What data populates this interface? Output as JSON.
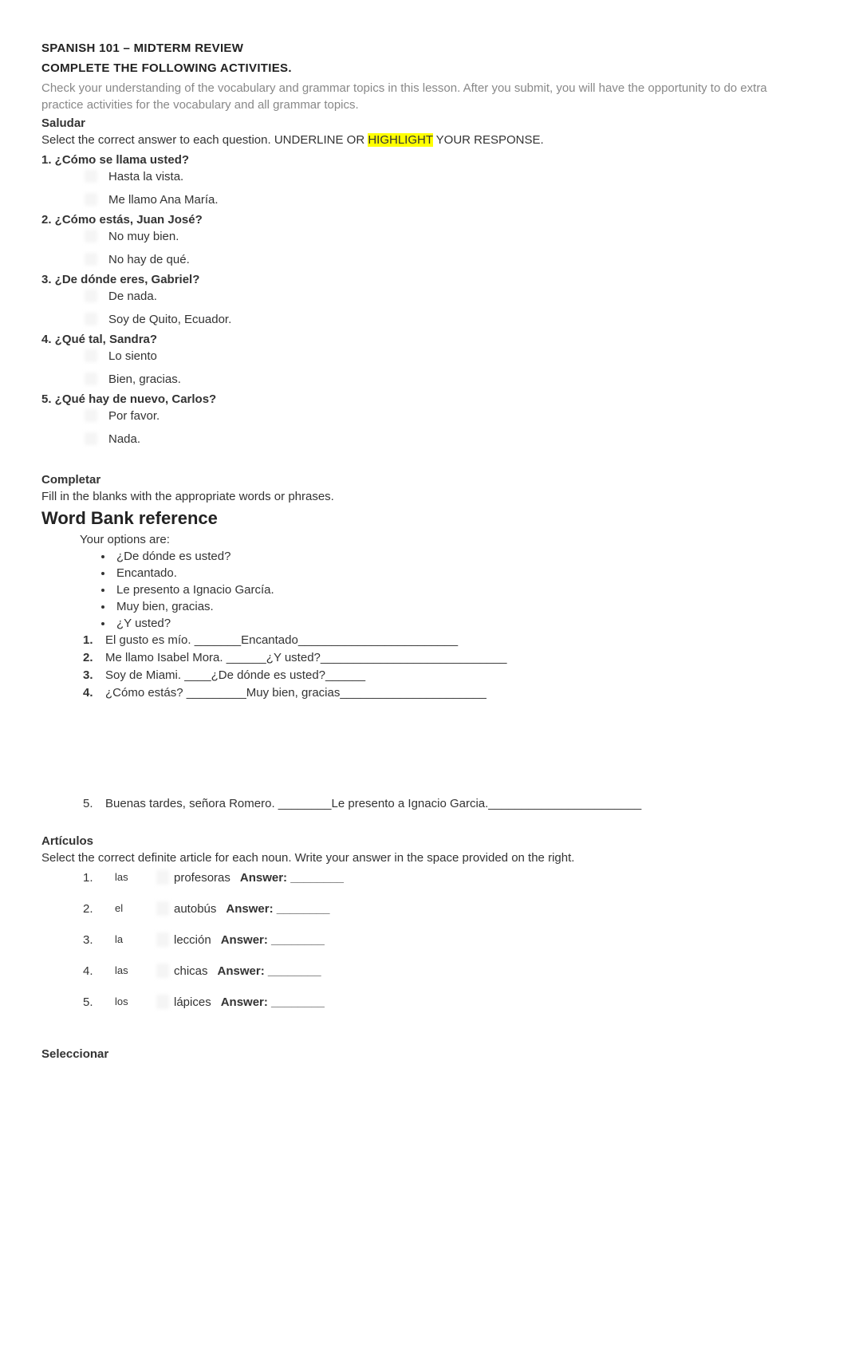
{
  "header": {
    "title": "SPANISH 101 – MIDTERM REVIEW",
    "subtitle": "COMPLETE THE FOLLOWING ACTIVITIES.",
    "intro": "Check your understanding of the vocabulary and grammar topics in this lesson. After you submit, you will have the opportunity to do extra practice activities for the vocabulary and all grammar topics."
  },
  "saludar": {
    "title": "Saludar",
    "instruction_before": "Select the correct answer to each question. UNDERLINE OR ",
    "instruction_highlight": "HIGHLIGHT",
    "instruction_after": " YOUR RESPONSE.",
    "questions": [
      {
        "prompt": "1. ¿Cómo se llama usted?",
        "options": [
          "Hasta la vista.",
          "Me llamo Ana María."
        ]
      },
      {
        "prompt": "2. ¿Cómo estás, Juan José?",
        "options": [
          "No muy bien.",
          "No hay de qué."
        ]
      },
      {
        "prompt": "3. ¿De dónde eres, Gabriel?",
        "options": [
          "De nada.",
          "Soy de Quito, Ecuador."
        ]
      },
      {
        "prompt": "4. ¿Qué tal, Sandra?",
        "options": [
          "Lo siento",
          "Bien, gracias."
        ]
      },
      {
        "prompt": "5. ¿Qué hay de nuevo, Carlos?",
        "options": [
          "Por favor.",
          "Nada."
        ]
      }
    ]
  },
  "completar": {
    "title": "Completar",
    "instruction": "Fill in the blanks with the appropriate words or phrases.",
    "wordbank_heading": "Word Bank reference",
    "options_label": "Your options are:",
    "options": [
      "¿De dónde es usted?",
      "Encantado.",
      "Le presento a Ignacio García.",
      "Muy bien, gracias.",
      "¿Y usted?"
    ],
    "items": [
      {
        "num": "1.",
        "text": "El gusto es mío.   _______Encantado________________________"
      },
      {
        "num": "2.",
        "text": "Me llamo Isabel Mora. ______¿Y usted?____________________________"
      },
      {
        "num": "3.",
        "text": "Soy de Miami. ____¿De dónde es usted?______"
      },
      {
        "num": "4.",
        "text": "¿Cómo estás? _________Muy bien, gracias______________________"
      }
    ],
    "item5": {
      "num": "5.",
      "text": "Buenas tardes, señora Romero. ________Le presento a Ignacio Garcia._______________________"
    }
  },
  "articulos": {
    "title": "Artículos",
    "instruction": "Select the correct definite article for each noun. Write your answer in the space provided on the right.",
    "items": [
      {
        "num": "1.",
        "blur": "las",
        "noun": "profesoras",
        "answer_label": "Answer: ________"
      },
      {
        "num": "2.",
        "blur": "el",
        "noun": "autobús",
        "answer_label": "Answer: ________"
      },
      {
        "num": "3.",
        "blur": "la",
        "noun": "lección",
        "answer_label": "Answer: ________"
      },
      {
        "num": "4.",
        "blur": "las",
        "noun": "chicas",
        "answer_label": "Answer: ________"
      },
      {
        "num": "5.",
        "blur": "los",
        "noun": "lápices",
        "answer_label": "Answer: ________"
      }
    ]
  },
  "seleccionar": {
    "title": "Seleccionar"
  }
}
